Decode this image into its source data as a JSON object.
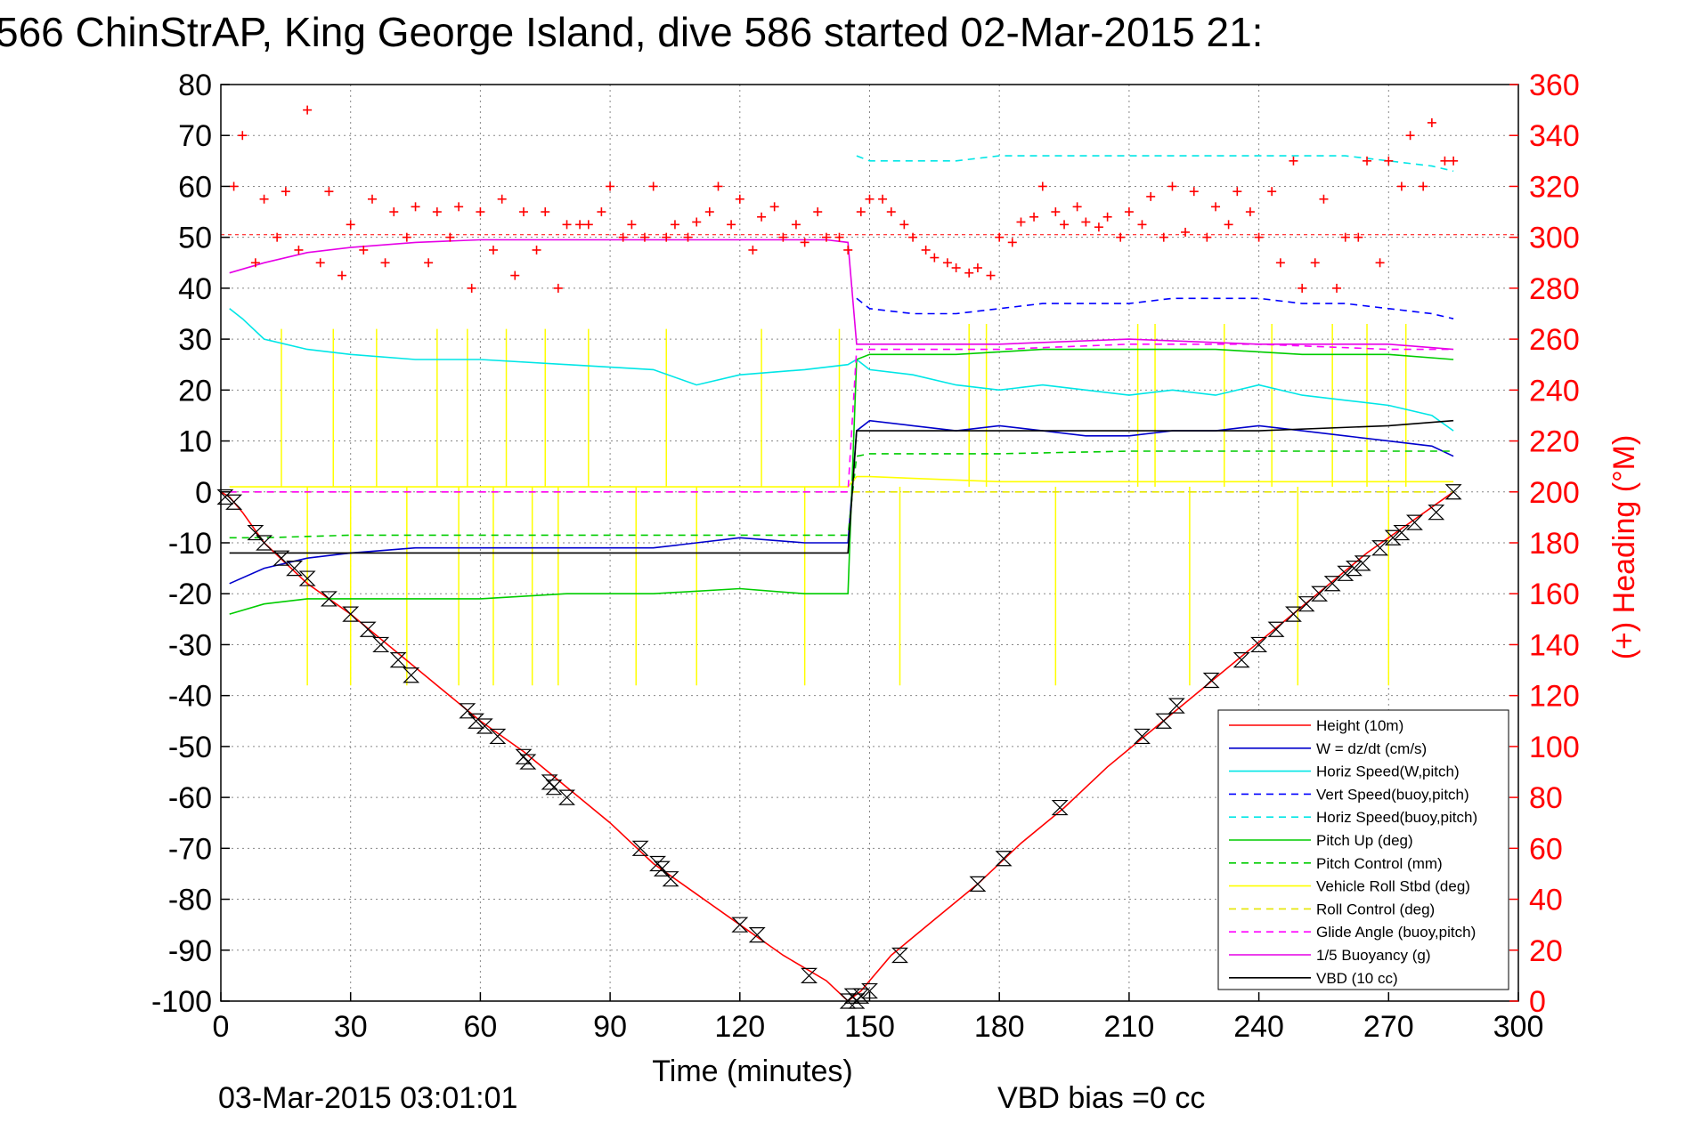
{
  "chart_data": {
    "type": "line",
    "title": "566 ChinStrAP, King George Island, dive 586 started 02-Mar-2015 21:",
    "xlabel": "Time (minutes)",
    "ylabel_right": "(+) Heading (°M)",
    "xlim": [
      0,
      300
    ],
    "ylim": [
      -100,
      80
    ],
    "ylim_right": [
      0,
      360
    ],
    "xticks": [
      "0",
      "30",
      "60",
      "90",
      "120",
      "150",
      "180",
      "210",
      "240",
      "270",
      "300"
    ],
    "yticks": [
      "80",
      "70",
      "60",
      "50",
      "40",
      "30",
      "20",
      "10",
      "0",
      "-10",
      "-20",
      "-30",
      "-40",
      "-50",
      "-60",
      "-70",
      "-80",
      "-90",
      "-100"
    ],
    "yticks_right": [
      "360",
      "340",
      "320",
      "300",
      "280",
      "260",
      "240",
      "220",
      "200",
      "180",
      "160",
      "140",
      "120",
      "100",
      "80",
      "60",
      "40",
      "20",
      "0"
    ],
    "grid": true,
    "legend_position": "bottom-right",
    "footer_time": "03-Mar-2015 03:01:01",
    "footer_note": "VBD bias =0 cc",
    "colors": {
      "height": "#ff0000",
      "w": "#0000cc",
      "horiz_speed": "#00e6e6",
      "vert_speed_buoy": "#0000ff",
      "horiz_speed_buoy": "#00e6e6",
      "pitch_up": "#00cc00",
      "pitch_control": "#00cc00",
      "roll": "#ffff00",
      "roll_control": "#e6e600",
      "glide_angle": "#ff00ff",
      "buoyancy": "#e600e6",
      "vbd": "#000000",
      "heading": "#ff0000"
    },
    "series": [
      {
        "name": "Height (10m)",
        "key": "height",
        "dash": false,
        "x": [
          0,
          2,
          5,
          10,
          20,
          30,
          40,
          50,
          60,
          70,
          80,
          90,
          100,
          110,
          120,
          130,
          140,
          145,
          148,
          155,
          165,
          175,
          185,
          195,
          205,
          215,
          225,
          235,
          245,
          255,
          265,
          275,
          285
        ],
        "y": [
          0,
          -1,
          -4,
          -10,
          -18,
          -24,
          -31,
          -38,
          -45,
          -51,
          -58,
          -65,
          -73,
          -79,
          -85,
          -91,
          -96,
          -100,
          -98,
          -91,
          -84,
          -77,
          -69,
          -62,
          -54,
          -47,
          -40,
          -33,
          -26,
          -19,
          -12,
          -6,
          0
        ]
      },
      {
        "name": "W = dz/dt (cm/s)",
        "key": "w",
        "dash": false,
        "x": [
          2,
          10,
          20,
          30,
          45,
          60,
          80,
          100,
          120,
          135,
          145,
          147,
          150,
          160,
          170,
          180,
          190,
          200,
          210,
          220,
          230,
          240,
          250,
          260,
          270,
          280,
          285
        ],
        "y": [
          -18,
          -15,
          -13,
          -12,
          -11,
          -11,
          -11,
          -11,
          -9,
          -10,
          -10,
          12,
          14,
          13,
          12,
          13,
          12,
          11,
          11,
          12,
          12,
          13,
          12,
          11,
          10,
          9,
          7
        ]
      },
      {
        "name": "Horiz Speed(W,pitch)",
        "key": "horiz_speed",
        "dash": false,
        "x": [
          2,
          5,
          10,
          20,
          30,
          45,
          60,
          80,
          100,
          110,
          120,
          135,
          145,
          147,
          150,
          160,
          170,
          180,
          190,
          200,
          210,
          220,
          230,
          240,
          250,
          260,
          270,
          280,
          285
        ],
        "y": [
          36,
          34,
          30,
          28,
          27,
          26,
          26,
          25,
          24,
          21,
          23,
          24,
          25,
          26,
          24,
          23,
          21,
          20,
          21,
          20,
          19,
          20,
          19,
          21,
          19,
          18,
          17,
          15,
          12
        ]
      },
      {
        "name": "Vert Speed(buoy,pitch)",
        "key": "vert_speed_buoy",
        "dash": true,
        "x": [
          147,
          150,
          160,
          170,
          180,
          190,
          200,
          210,
          220,
          230,
          240,
          250,
          260,
          270,
          280,
          285
        ],
        "y": [
          38,
          36,
          35,
          35,
          36,
          37,
          37,
          37,
          38,
          38,
          38,
          37,
          37,
          36,
          35,
          34
        ]
      },
      {
        "name": "Horiz Speed(buoy,pitch)",
        "key": "horiz_speed_buoy",
        "dash": true,
        "x": [
          147,
          150,
          160,
          170,
          180,
          190,
          200,
          210,
          220,
          230,
          240,
          250,
          260,
          270,
          280,
          285
        ],
        "y": [
          66,
          65,
          65,
          65,
          66,
          66,
          66,
          66,
          66,
          66,
          66,
          66,
          66,
          65,
          64,
          63
        ]
      },
      {
        "name": "Pitch Up (deg)",
        "key": "pitch_up",
        "dash": false,
        "x": [
          2,
          10,
          20,
          30,
          45,
          60,
          80,
          100,
          120,
          135,
          145,
          147,
          150,
          170,
          190,
          210,
          230,
          250,
          270,
          285
        ],
        "y": [
          -24,
          -22,
          -21,
          -21,
          -21,
          -21,
          -20,
          -20,
          -19,
          -20,
          -20,
          26,
          27,
          27,
          28,
          28,
          28,
          27,
          27,
          26
        ]
      },
      {
        "name": "Pitch Control (mm)",
        "key": "pitch_control",
        "dash": true,
        "x": [
          2,
          10,
          30,
          60,
          90,
          120,
          145,
          147,
          150,
          180,
          210,
          240,
          270,
          285
        ],
        "y": [
          -9,
          -9,
          -8.5,
          -8.5,
          -8.5,
          -8.5,
          -8.5,
          7,
          7.5,
          7.5,
          8,
          8,
          8,
          8
        ]
      },
      {
        "name": "Vehicle Roll Stbd (deg)",
        "key": "roll",
        "dash": false,
        "x": [
          2,
          10,
          30,
          60,
          90,
          120,
          145,
          147,
          150,
          180,
          210,
          240,
          270,
          285
        ],
        "y": [
          1,
          1,
          1,
          1,
          1,
          1,
          1,
          3,
          3,
          2,
          2,
          2,
          2,
          2
        ]
      },
      {
        "name": "Roll Control (deg)",
        "key": "roll_control",
        "dash": true,
        "x": [
          2,
          30,
          60,
          90,
          120,
          145,
          147,
          180,
          210,
          240,
          270,
          285
        ],
        "y": [
          0,
          0,
          0,
          0,
          0,
          0,
          0,
          0,
          0,
          0,
          0,
          0
        ]
      },
      {
        "name": "Glide Angle (buoy,pitch)",
        "key": "glide_angle",
        "dash": true,
        "x": [
          2,
          30,
          60,
          90,
          120,
          145,
          147,
          150,
          180,
          210,
          240,
          270,
          285
        ],
        "y": [
          0,
          0,
          0,
          0,
          0,
          0,
          28,
          28,
          28,
          29,
          29,
          28,
          28
        ]
      },
      {
        "name": "1/5 Buoyancy (g)",
        "key": "buoyancy",
        "dash": false,
        "x": [
          2,
          10,
          20,
          30,
          45,
          60,
          80,
          100,
          120,
          140,
          145,
          147,
          150,
          180,
          210,
          240,
          270,
          285
        ],
        "y": [
          43,
          45,
          47,
          48,
          49,
          49.5,
          49.5,
          49.5,
          49.5,
          49.5,
          49,
          29,
          29,
          29,
          30,
          29,
          29,
          28
        ]
      },
      {
        "name": "VBD (10 cc)",
        "key": "vbd",
        "dash": false,
        "x": [
          2,
          5,
          20,
          60,
          100,
          145,
          147,
          150,
          180,
          210,
          240,
          270,
          285
        ],
        "y": [
          -12,
          -12,
          -12,
          -12,
          -12,
          -12,
          12,
          12,
          12,
          12,
          12,
          13,
          14
        ]
      }
    ],
    "heading": {
      "name": "Heading",
      "x": [
        3,
        5,
        8,
        10,
        13,
        15,
        18,
        20,
        23,
        25,
        28,
        30,
        33,
        35,
        38,
        40,
        43,
        45,
        48,
        50,
        53,
        55,
        58,
        60,
        63,
        65,
        68,
        70,
        73,
        75,
        78,
        80,
        83,
        85,
        88,
        90,
        93,
        95,
        98,
        100,
        103,
        105,
        108,
        110,
        113,
        115,
        118,
        120,
        123,
        125,
        128,
        130,
        133,
        135,
        138,
        140,
        143,
        145,
        148,
        150,
        153,
        155,
        158,
        160,
        163,
        165,
        168,
        170,
        173,
        175,
        178,
        180,
        183,
        185,
        188,
        190,
        193,
        195,
        198,
        200,
        203,
        205,
        208,
        210,
        213,
        215,
        218,
        220,
        223,
        225,
        228,
        230,
        233,
        235,
        238,
        240,
        243,
        245,
        248,
        250,
        253,
        255,
        258,
        260,
        263,
        265,
        268,
        270,
        273,
        275,
        278,
        280,
        283,
        285
      ],
      "y": [
        320,
        340,
        290,
        315,
        300,
        318,
        295,
        350,
        290,
        318,
        285,
        305,
        295,
        315,
        290,
        310,
        300,
        312,
        290,
        310,
        300,
        312,
        280,
        310,
        295,
        315,
        285,
        310,
        295,
        310,
        280,
        305,
        305,
        305,
        310,
        320,
        300,
        305,
        300,
        320,
        300,
        305,
        300,
        306,
        310,
        320,
        305,
        315,
        295,
        308,
        312,
        300,
        305,
        298,
        310,
        300,
        300,
        295,
        310,
        315,
        315,
        310,
        305,
        300,
        295,
        292,
        290,
        288,
        286,
        288,
        285,
        300,
        298,
        306,
        308,
        320,
        310,
        305,
        312,
        306,
        304,
        308,
        300,
        310,
        305,
        316,
        300,
        320,
        302,
        318,
        300,
        312,
        305,
        318,
        310,
        300,
        318,
        290,
        330,
        280,
        290,
        315,
        280,
        300,
        300,
        330,
        290,
        330,
        320,
        340,
        320,
        345,
        330,
        330
      ]
    },
    "markers": {
      "name": "Height (10m) markers",
      "x": [
        1,
        3,
        8,
        10,
        14,
        17,
        20,
        25,
        30,
        34,
        37,
        41,
        44,
        57,
        59,
        61,
        64,
        70,
        71,
        76,
        77,
        80,
        97,
        101,
        102,
        104,
        120,
        124,
        136,
        145,
        146,
        147,
        148,
        150,
        157,
        175,
        181,
        194,
        213,
        218,
        221,
        229,
        236,
        240,
        244,
        248,
        251,
        254,
        257,
        260,
        262,
        264,
        268,
        271,
        273,
        276,
        281,
        285
      ],
      "y": [
        -1,
        -2,
        -8,
        -10,
        -13,
        -15,
        -17,
        -21,
        -24,
        -27,
        -30,
        -33,
        -36,
        -43,
        -45,
        -46,
        -48,
        -52,
        -53,
        -57,
        -58,
        -60,
        -70,
        -73,
        -74,
        -76,
        -85,
        -87,
        -95,
        -100,
        -99,
        -100,
        -99,
        -98,
        -91,
        -77,
        -72,
        -62,
        -48,
        -45,
        -42,
        -37,
        -33,
        -30,
        -27,
        -24,
        -22,
        -20,
        -18,
        -16,
        -15,
        -14,
        -11,
        -9,
        -8,
        -6,
        -4,
        0
      ]
    }
  }
}
